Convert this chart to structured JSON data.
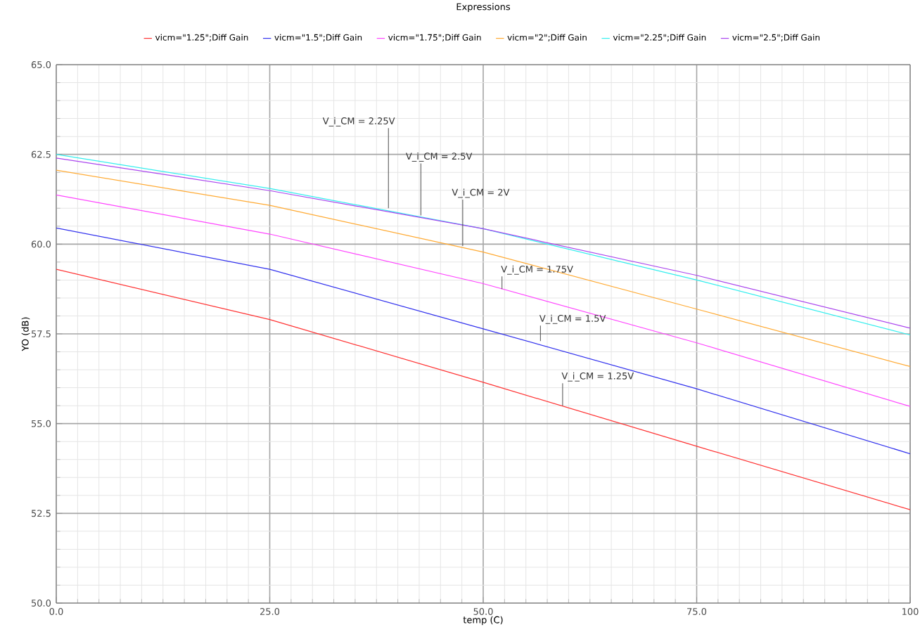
{
  "chart_data": {
    "type": "line",
    "title": "Expressions",
    "xlabel": "temp (C)",
    "ylabel": "YO (dB)",
    "x": [
      0,
      25,
      50,
      75,
      100
    ],
    "series": [
      {
        "name": "vicm=\"1.25\";Diff Gain",
        "color": "#ff3333",
        "values": [
          59.3,
          57.9,
          56.15,
          54.37,
          52.6
        ]
      },
      {
        "name": "vicm=\"1.5\";Diff Gain",
        "color": "#3333ee",
        "values": [
          60.45,
          59.3,
          57.64,
          55.97,
          54.16
        ]
      },
      {
        "name": "vicm=\"1.75\";Diff Gain",
        "color": "#ff44ff",
        "values": [
          61.37,
          60.28,
          58.9,
          57.25,
          55.48
        ]
      },
      {
        "name": "vicm=\"2\";Diff Gain",
        "color": "#ffaa33",
        "values": [
          62.06,
          61.08,
          59.78,
          58.19,
          56.59
        ]
      },
      {
        "name": "vicm=\"2.25\";Diff Gain",
        "color": "#33eeee",
        "values": [
          62.5,
          61.55,
          60.43,
          59.0,
          57.47
        ]
      },
      {
        "name": "vicm=\"2.5\";Diff Gain",
        "color": "#aa44ee",
        "values": [
          62.4,
          61.49,
          60.43,
          59.13,
          57.66
        ]
      }
    ],
    "annotations": [
      {
        "text": "V_i_CM = 2.25V",
        "x": 38.9,
        "y": 61.0
      },
      {
        "text": "V_i_CM = 2.5V",
        "x": 42.7,
        "y": 60.8
      },
      {
        "text": "V_i_CM = 2V",
        "x": 47.6,
        "y": 59.95
      },
      {
        "text": "V_i_CM = 1.75V",
        "x": 52.2,
        "y": 58.75
      },
      {
        "text": "V_i_CM = 1.5V",
        "x": 56.7,
        "y": 57.3
      },
      {
        "text": "V_i_CM = 1.25V",
        "x": 59.3,
        "y": 55.5
      }
    ],
    "xlim": [
      0,
      100
    ],
    "ylim": [
      50,
      65
    ],
    "xticks": [
      {
        "value": 0,
        "label": "0.0"
      },
      {
        "value": 25,
        "label": "25.0"
      },
      {
        "value": 50,
        "label": "50.0"
      },
      {
        "value": 75,
        "label": "75.0"
      },
      {
        "value": 100,
        "label": "100"
      }
    ],
    "yticks": [
      {
        "value": 50,
        "label": "50.0"
      },
      {
        "value": 52.5,
        "label": "52.5"
      },
      {
        "value": 55,
        "label": "55.0"
      },
      {
        "value": 57.5,
        "label": "57.5"
      },
      {
        "value": 60,
        "label": "60.0"
      },
      {
        "value": 62.5,
        "label": "62.5"
      },
      {
        "value": 65,
        "label": "65.0"
      }
    ],
    "grid": true,
    "legend": "top",
    "marker": "none",
    "line_style": "solid"
  }
}
